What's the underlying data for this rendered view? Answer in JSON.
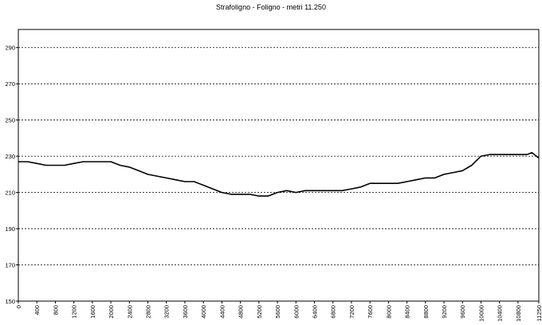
{
  "chart_data": {
    "type": "line",
    "title": "Strafoligno - Foligno - metri 11.250",
    "xlabel": "",
    "ylabel": "",
    "xlim": [
      0,
      11250
    ],
    "ylim": [
      150,
      300
    ],
    "yticks": [
      150,
      170,
      190,
      210,
      230,
      250,
      270,
      290
    ],
    "xticks": [
      0,
      400,
      800,
      1200,
      1600,
      2000,
      2400,
      2800,
      3200,
      3600,
      4000,
      4400,
      4800,
      5200,
      5600,
      6000,
      6400,
      6800,
      7200,
      7600,
      8000,
      8400,
      8800,
      9200,
      9600,
      10000,
      10400,
      10800,
      11250
    ],
    "grid": "horizontal-dashed",
    "legend": "none",
    "line_color": "#000000",
    "series": [
      {
        "x": [
          0,
          200,
          400,
          600,
          800,
          1000,
          1200,
          1400,
          1600,
          1800,
          2000,
          2200,
          2400,
          2600,
          2800,
          3000,
          3200,
          3400,
          3600,
          3800,
          4000,
          4200,
          4400,
          4600,
          4800,
          5000,
          5200,
          5400,
          5600,
          5800,
          6000,
          6200,
          6400,
          6600,
          6800,
          7000,
          7200,
          7400,
          7600,
          7800,
          8000,
          8200,
          8400,
          8600,
          8800,
          9000,
          9200,
          9400,
          9600,
          9800,
          10000,
          10200,
          10400,
          10600,
          10800,
          11000,
          11100,
          11250
        ],
        "values": [
          227,
          227,
          226,
          225,
          225,
          225,
          226,
          227,
          227,
          227,
          227,
          225,
          224,
          222,
          220,
          219,
          218,
          217,
          216,
          216,
          214,
          212,
          210,
          209,
          209,
          209,
          208,
          208,
          210,
          211,
          210,
          211,
          211,
          211,
          211,
          211,
          212,
          213,
          215,
          215,
          215,
          215,
          216,
          217,
          218,
          218,
          220,
          221,
          222,
          225,
          230,
          231,
          231,
          231,
          231,
          231,
          232,
          229
        ]
      }
    ]
  }
}
